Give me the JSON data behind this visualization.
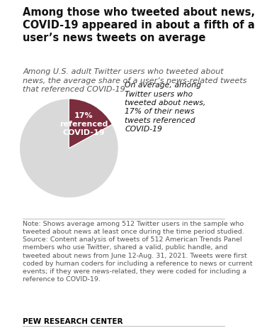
{
  "title": "Among those who tweeted about news,\nCOVID-19 appeared in about a fifth of a\nuser’s news tweets on average",
  "subtitle": "Among U.S. adult Twitter users who tweeted about\nnews, the average share of a user’s news-related tweets\nthat referenced COVID-19",
  "slices": [
    17,
    83
  ],
  "colors": [
    "#7b2d3e",
    "#d9d9d9"
  ],
  "wedge_label": "17%\nreferenced\nCOVID-19",
  "annotation_line1": "On average, among\nTwitter users who\ntweeted about news,\n",
  "annotation_line2": "17% of their news\ntweets referenced\nCOVID-19",
  "note_text": "Note: Shows average among 512 Twitter users in the sample who\ntweeted about news at least once during the time period studied.\nSource: Content analysis of tweets of 512 American Trends Panel\nmembers who use Twitter, shared a valid, public handle, and\ntweeted about news from June 12-Aug. 31, 2021. Tweets were first\ncoded by human coders for including a reference to news or current\nevents; if they were news-related, they were coded for including a\nreference to COVID-19.",
  "footer": "PEW RESEARCH CENTER",
  "bg_color": "#ffffff",
  "title_fontsize": 10.5,
  "subtitle_fontsize": 8,
  "note_fontsize": 6.8,
  "footer_fontsize": 7.5,
  "annot_fontsize": 7.8,
  "wedge_label_fontsize": 8.0
}
